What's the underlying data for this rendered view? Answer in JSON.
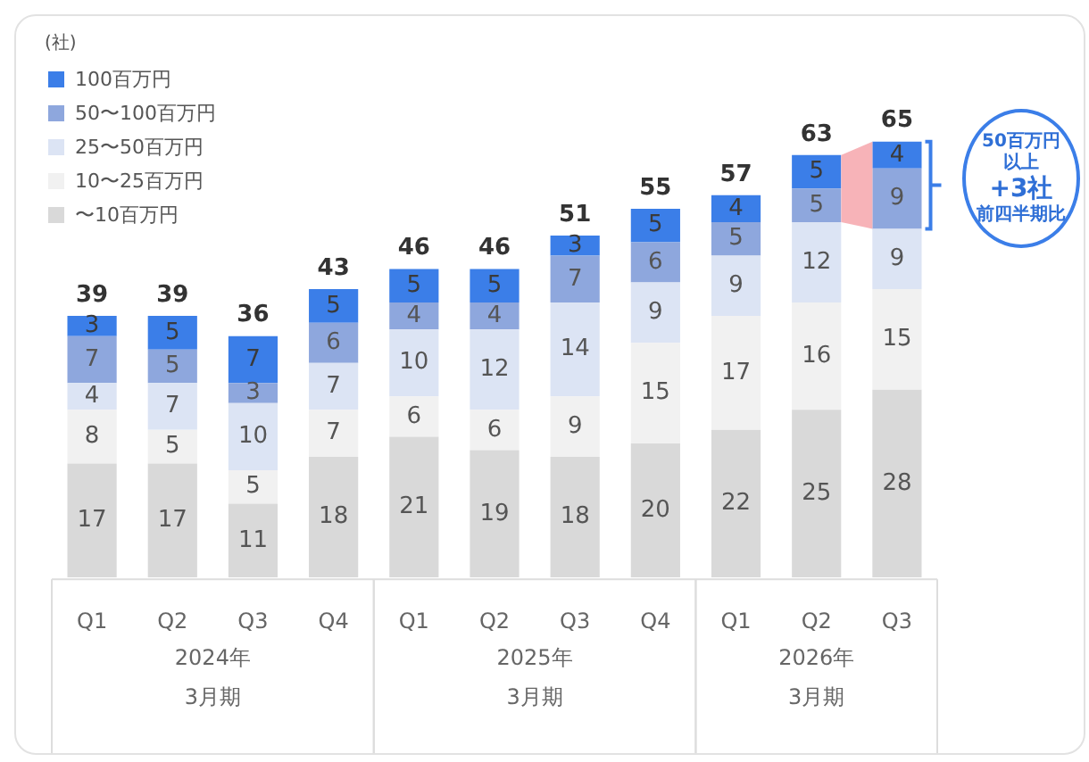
{
  "chart_data": {
    "type": "bar",
    "stacked": true,
    "ylabel": "(社)",
    "categories": [
      "Q1",
      "Q2",
      "Q3",
      "Q4",
      "Q1",
      "Q2",
      "Q3",
      "Q4",
      "Q1",
      "Q2",
      "Q3"
    ],
    "series": [
      {
        "name": "〜10百万円",
        "color": "#d9d9d9",
        "values": [
          17,
          17,
          11,
          18,
          21,
          19,
          18,
          20,
          22,
          25,
          28
        ]
      },
      {
        "name": "10〜25百万円",
        "color": "#f1f1f1",
        "values": [
          8,
          5,
          5,
          7,
          6,
          6,
          9,
          15,
          17,
          16,
          15
        ]
      },
      {
        "name": "25〜50百万円",
        "color": "#dce4f4",
        "values": [
          4,
          7,
          10,
          7,
          10,
          12,
          14,
          9,
          9,
          12,
          9
        ]
      },
      {
        "name": "50〜100百万円",
        "color": "#8ea7dd",
        "values": [
          7,
          5,
          3,
          6,
          4,
          4,
          7,
          6,
          5,
          5,
          9
        ]
      },
      {
        "name": "100百万円",
        "color": "#3b7ee8",
        "values": [
          3,
          5,
          7,
          5,
          5,
          5,
          3,
          5,
          4,
          5,
          4
        ]
      }
    ],
    "totals": [
      "39",
      "39",
      "36",
      "43",
      "46",
      "46",
      "51",
      "55",
      "57",
      "63",
      "65"
    ],
    "data_labels": true,
    "legend": "top left",
    "grid": false,
    "annotations": [
      "2024年\n3月期",
      "2025年\n3月期",
      "2026年\n3月期",
      "50百万円以上",
      "+3社",
      "前四半期比"
    ]
  }
}
